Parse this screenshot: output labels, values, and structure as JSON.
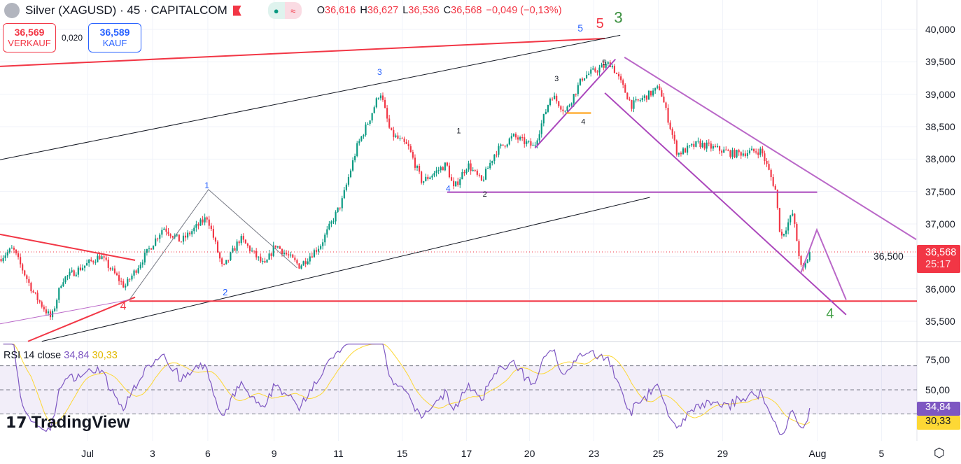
{
  "header": {
    "symbol": "Silver (XAGUSD) · 45 · CAPITALCOM",
    "o_label": "O",
    "o": "36,616",
    "h_label": "H",
    "h": "36,627",
    "l_label": "L",
    "l": "36,536",
    "c_label": "C",
    "c": "36,568",
    "change": "−0,049 (−0,13%)",
    "market_icon": "approx-icon"
  },
  "trade": {
    "sell_price": "36,569",
    "sell_label": "VERKAUF",
    "spread": "0,020",
    "buy_price": "36,589",
    "buy_label": "KAUF"
  },
  "last_price": "36,568",
  "countdown": "25:17",
  "rsi": {
    "label": "RSI 14 close",
    "value": "34,84",
    "ma": "30,33",
    "ticks": [
      "75,00",
      "50,00"
    ]
  },
  "brand": "TradingView",
  "colors": {
    "up": "#089981",
    "down": "#f23645",
    "rsi": "#7e57c2",
    "rsi_ma": "#fdd835",
    "accent": "#2962ff"
  },
  "chart_data": {
    "type": "candlestick",
    "title": "Silver (XAGUSD) · 45 · CAPITALCOM",
    "ylim": [
      35.3,
      40.5
    ],
    "yticks": [
      {
        "v": 40.0,
        "t": "40,000"
      },
      {
        "v": 39.5,
        "t": "39,500"
      },
      {
        "v": 39.0,
        "t": "39,000"
      },
      {
        "v": 38.5,
        "t": "38,500"
      },
      {
        "v": 38.0,
        "t": "38,000"
      },
      {
        "v": 37.5,
        "t": "37,500"
      },
      {
        "v": 37.0,
        "t": "37,000"
      },
      {
        "v": 36.5,
        "t": "36,500"
      },
      {
        "v": 36.0,
        "t": "36,000"
      },
      {
        "v": 35.5,
        "t": "35,500"
      }
    ],
    "xlim": [
      0,
      28.5
    ],
    "xticks": [
      {
        "s": 2.72,
        "t": "Jul"
      },
      {
        "s": 4.74,
        "t": "3"
      },
      {
        "s": 6.46,
        "t": "6"
      },
      {
        "s": 8.52,
        "t": "9"
      },
      {
        "s": 10.52,
        "t": "11"
      },
      {
        "s": 12.5,
        "t": "15"
      },
      {
        "s": 14.5,
        "t": "17"
      },
      {
        "s": 16.46,
        "t": "20"
      },
      {
        "s": 18.46,
        "t": "23"
      },
      {
        "s": 20.46,
        "t": "25"
      },
      {
        "s": 22.46,
        "t": "29"
      },
      {
        "s": 25.41,
        "t": "Aug"
      },
      {
        "s": 27.4,
        "t": "5"
      }
    ],
    "price_path": [
      [
        0,
        36.46
      ],
      [
        0.43,
        36.62
      ],
      [
        1.09,
        35.92
      ],
      [
        1.63,
        35.54
      ],
      [
        1.96,
        36.14
      ],
      [
        3.15,
        36.51
      ],
      [
        3.91,
        36.03
      ],
      [
        5.11,
        36.95
      ],
      [
        5.65,
        36.73
      ],
      [
        6.48,
        37.11
      ],
      [
        6.96,
        36.3
      ],
      [
        7.5,
        36.78
      ],
      [
        8.26,
        36.35
      ],
      [
        8.59,
        36.68
      ],
      [
        9.35,
        36.35
      ],
      [
        10.0,
        36.68
      ],
      [
        10.65,
        37.33
      ],
      [
        11.13,
        38.19
      ],
      [
        11.52,
        38.62
      ],
      [
        11.85,
        39.05
      ],
      [
        12.17,
        38.4
      ],
      [
        12.72,
        38.19
      ],
      [
        13.15,
        37.65
      ],
      [
        13.91,
        37.92
      ],
      [
        14.13,
        37.54
      ],
      [
        14.57,
        37.92
      ],
      [
        15.0,
        37.65
      ],
      [
        15.43,
        38.11
      ],
      [
        15.98,
        38.35
      ],
      [
        16.63,
        38.19
      ],
      [
        17.17,
        39.0
      ],
      [
        17.61,
        38.73
      ],
      [
        18.15,
        39.27
      ],
      [
        19.02,
        39.48
      ],
      [
        19.24,
        39.27
      ],
      [
        19.67,
        38.83
      ],
      [
        20.54,
        39.1
      ],
      [
        21.09,
        38.08
      ],
      [
        21.74,
        38.24
      ],
      [
        22.83,
        38.08
      ],
      [
        23.7,
        38.13
      ],
      [
        24.13,
        37.54
      ],
      [
        24.3,
        36.78
      ],
      [
        24.67,
        37.16
      ],
      [
        24.96,
        36.24
      ],
      [
        25.22,
        36.57
      ]
    ],
    "bars_per_session": 15,
    "rsi": {
      "period": 14,
      "ma_period": 14,
      "ylim": [
        12,
        89
      ],
      "levels": [
        70,
        50,
        30
      ],
      "last": 34.84,
      "last_ma": 30.33
    },
    "drawings": {
      "lines": [
        {
          "c": "#f23645",
          "w": 2,
          "p": [
            [
              0,
              39.43
            ],
            [
              18.8,
              39.86
            ]
          ]
        },
        {
          "c": "#131722",
          "w": 1,
          "p": [
            [
              0,
              37.99
            ],
            [
              19.28,
              39.91
            ]
          ]
        },
        {
          "c": "#131722",
          "w": 1,
          "p": [
            [
              1.3,
              35.19
            ],
            [
              20.2,
              37.41
            ]
          ]
        },
        {
          "c": "#f23645",
          "w": 2,
          "p": [
            [
              0,
              36.84
            ],
            [
              4.2,
              36.44
            ]
          ]
        },
        {
          "c": "#f23645",
          "w": 2,
          "p": [
            [
              0.87,
              35.19
            ],
            [
              4.2,
              35.87
            ]
          ]
        },
        {
          "c": "#ba68c8",
          "w": 1,
          "p": [
            [
              0,
              35.46
            ],
            [
              4.02,
              35.83
            ]
          ]
        },
        {
          "c": "#f23645",
          "w": 2,
          "p": [
            [
              4.02,
              35.81
            ],
            [
              28.5,
              35.81
            ]
          ]
        },
        {
          "c": "#787b86",
          "w": 1,
          "p": [
            [
              4.02,
              35.83
            ],
            [
              6.48,
              37.53
            ],
            [
              9.24,
              36.32
            ]
          ]
        },
        {
          "c": "#ab47bc",
          "w": 2,
          "p": [
            [
              13.9,
              37.49
            ],
            [
              25.4,
              37.49
            ]
          ]
        },
        {
          "c": "#ba68c8",
          "w": 2,
          "p": [
            [
              19.41,
              39.57
            ],
            [
              28.48,
              36.76
            ]
          ]
        },
        {
          "c": "#ab47bc",
          "w": 2,
          "p": [
            [
              18.8,
              39.02
            ],
            [
              26.3,
              35.6
            ]
          ]
        },
        {
          "c": "#ab47bc",
          "w": 2,
          "p": [
            [
              16.63,
              38.17
            ],
            [
              19.13,
              39.54
            ]
          ]
        },
        {
          "c": "#ba68c8",
          "w": 2,
          "p": [
            [
              24.89,
              36.24
            ],
            [
              25.39,
              36.91
            ],
            [
              26.3,
              35.83
            ]
          ]
        },
        {
          "c": "#ff9800",
          "w": 2,
          "p": [
            [
              17.61,
              38.71
            ],
            [
              18.37,
              38.71
            ]
          ]
        }
      ],
      "labels": [
        {
          "t": "5",
          "c": "#2962ff",
          "s": 14,
          "at": [
            18.04,
            39.97
          ]
        },
        {
          "t": "5",
          "c": "#f23645",
          "s": 20,
          "at": [
            18.65,
            40.02
          ]
        },
        {
          "t": "3",
          "c": "#388e3c",
          "s": 22,
          "at": [
            19.22,
            40.1
          ]
        },
        {
          "t": "3",
          "c": "#2962ff",
          "s": 12,
          "at": [
            11.8,
            39.3
          ]
        },
        {
          "t": "1",
          "c": "#2962ff",
          "s": 12,
          "at": [
            6.43,
            37.55
          ]
        },
        {
          "t": "2",
          "c": "#2962ff",
          "s": 13,
          "at": [
            7.0,
            35.9
          ]
        },
        {
          "t": "4",
          "c": "#f23645",
          "s": 16,
          "at": [
            3.83,
            35.68
          ]
        },
        {
          "t": "1",
          "c": "#131722",
          "s": 11,
          "at": [
            14.26,
            38.4
          ]
        },
        {
          "t": "2",
          "c": "#131722",
          "s": 11,
          "at": [
            15.07,
            37.42
          ]
        },
        {
          "t": "4",
          "c": "#2962ff",
          "s": 12,
          "at": [
            13.93,
            37.5
          ]
        },
        {
          "t": "3",
          "c": "#131722",
          "s": 11,
          "at": [
            17.3,
            39.2
          ]
        },
        {
          "t": "4",
          "c": "#131722",
          "s": 11,
          "at": [
            18.13,
            38.54
          ]
        },
        {
          "t": "5",
          "c": "#131722",
          "s": 11,
          "at": [
            18.78,
            39.45
          ]
        },
        {
          "t": "4",
          "c": "#43a047",
          "s": 20,
          "at": [
            25.8,
            35.55
          ]
        }
      ]
    }
  }
}
